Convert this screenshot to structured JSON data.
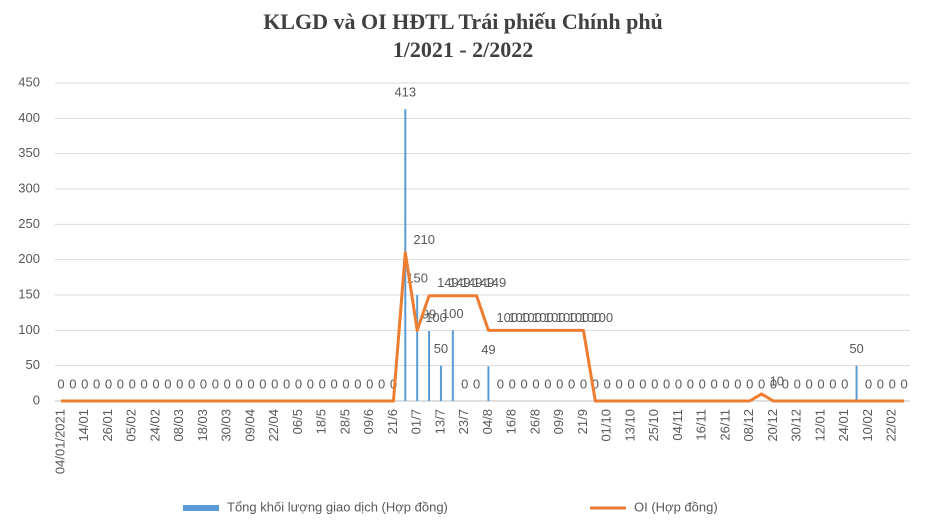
{
  "chart_data": {
    "type": "bar_line",
    "title": [
      "KLGD và OI HĐTL Trái phiếu Chính phủ",
      "1/2021 - 2/2022"
    ],
    "categories": [
      "04/01/2021",
      null,
      "14/01",
      null,
      "26/01",
      null,
      "05/02",
      null,
      "24/02",
      null,
      "08/03",
      null,
      "18/03",
      null,
      "30/03",
      null,
      "09/04",
      null,
      "22/04",
      null,
      "06/5",
      null,
      "18/5",
      null,
      "28/5",
      null,
      "09/6",
      null,
      "21/6",
      null,
      "01/7",
      null,
      "13/7",
      null,
      "23/7",
      null,
      "04/8",
      null,
      "16/8",
      null,
      "26/8",
      null,
      "09/9",
      null,
      "21/9",
      null,
      "01/10",
      null,
      "13/10",
      null,
      "25/10",
      null,
      "04/11",
      null,
      "16/11",
      null,
      "26/11",
      null,
      "08/12",
      null,
      "20/12",
      null,
      "30/12",
      null,
      "12/01",
      null,
      "24/01",
      null,
      "10/02",
      null,
      "22/02",
      null
    ],
    "series": [
      {
        "name": "Tổng khối lượng giao dịch  (Hợp đồng)",
        "kind": "bar",
        "color": "#5b9bd5",
        "values": [
          0,
          0,
          0,
          0,
          0,
          0,
          0,
          0,
          0,
          0,
          0,
          0,
          0,
          0,
          0,
          0,
          0,
          0,
          0,
          0,
          0,
          0,
          0,
          0,
          0,
          0,
          0,
          0,
          0,
          413,
          150,
          99,
          50,
          100,
          0,
          0,
          49,
          0,
          0,
          0,
          0,
          0,
          0,
          0,
          0,
          0,
          0,
          0,
          0,
          0,
          0,
          0,
          0,
          0,
          0,
          0,
          0,
          0,
          0,
          0,
          0,
          0,
          0,
          0,
          0,
          0,
          0,
          50,
          0,
          0,
          0,
          0
        ]
      },
      {
        "name": "OI (Hợp đồng)",
        "kind": "line",
        "color": "#ed7d31",
        "values": [
          0,
          0,
          0,
          0,
          0,
          0,
          0,
          0,
          0,
          0,
          0,
          0,
          0,
          0,
          0,
          0,
          0,
          0,
          0,
          0,
          0,
          0,
          0,
          0,
          0,
          0,
          0,
          0,
          0,
          210,
          100,
          149,
          149,
          149,
          149,
          149,
          100,
          100,
          100,
          100,
          100,
          100,
          100,
          100,
          100,
          0,
          0,
          0,
          0,
          0,
          0,
          0,
          0,
          0,
          0,
          0,
          0,
          0,
          0,
          10,
          0,
          0,
          0,
          0,
          0,
          0,
          0,
          0,
          0,
          0,
          0,
          0
        ]
      }
    ],
    "ylim": [
      0,
      450
    ],
    "yticks": [
      0,
      50,
      100,
      150,
      200,
      250,
      300,
      350,
      400,
      450
    ],
    "grid": true
  }
}
